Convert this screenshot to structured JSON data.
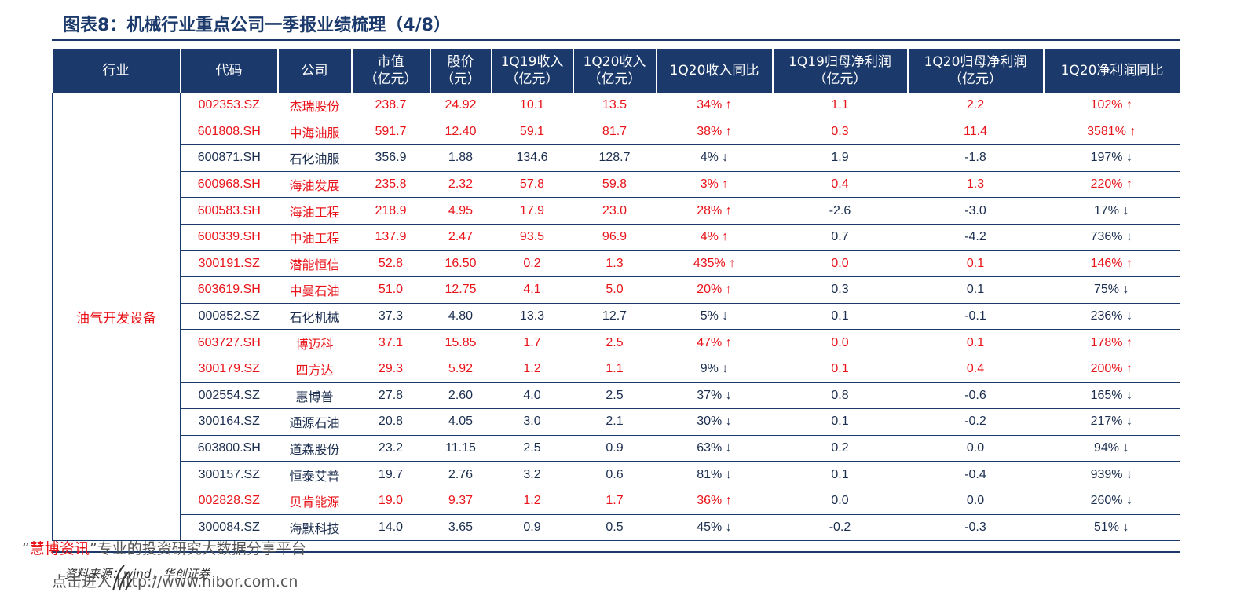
{
  "title": "图表8：机械行业重点公司一季报业绩梳理（4/8）",
  "headers": [
    {
      "l1": "行业",
      "l2": ""
    },
    {
      "l1": "代码",
      "l2": ""
    },
    {
      "l1": "公司",
      "l2": ""
    },
    {
      "l1": "市值",
      "l2": "（亿元）"
    },
    {
      "l1": "股价",
      "l2": "（元）"
    },
    {
      "l1": "1Q19收入",
      "l2": "（亿元）"
    },
    {
      "l1": "1Q20收入",
      "l2": "（亿元）"
    },
    {
      "l1": "1Q20收入同比",
      "l2": ""
    },
    {
      "l1": "1Q19归母净利润",
      "l2": "（亿元）"
    },
    {
      "l1": "1Q20归母净利润",
      "l2": "（亿元）"
    },
    {
      "l1": "1Q20净利润同比",
      "l2": ""
    }
  ],
  "industry": "油气开发设备",
  "arrows": {
    "up": "↑",
    "down": "↓"
  },
  "rows": [
    {
      "code": "002353.SZ",
      "company": "杰瑞股份",
      "mcap": "238.7",
      "price": "24.92",
      "rev19": "10.1",
      "rev20": "13.5",
      "rev_yoy": "34%",
      "rev_dir": "up",
      "np19": "1.1",
      "np20": "2.2",
      "np_yoy": "102%",
      "np_dir": "up",
      "highlight": true
    },
    {
      "code": "601808.SH",
      "company": "中海油服",
      "mcap": "591.7",
      "price": "12.40",
      "rev19": "59.1",
      "rev20": "81.7",
      "rev_yoy": "38%",
      "rev_dir": "up",
      "np19": "0.3",
      "np20": "11.4",
      "np_yoy": "3581%",
      "np_dir": "up",
      "highlight": true
    },
    {
      "code": "600871.SH",
      "company": "石化油服",
      "mcap": "356.9",
      "price": "1.88",
      "rev19": "134.6",
      "rev20": "128.7",
      "rev_yoy": "4%",
      "rev_dir": "down",
      "np19": "1.9",
      "np20": "-1.8",
      "np_yoy": "197%",
      "np_dir": "down",
      "highlight": false
    },
    {
      "code": "600968.SH",
      "company": "海油发展",
      "mcap": "235.8",
      "price": "2.32",
      "rev19": "57.8",
      "rev20": "59.8",
      "rev_yoy": "3%",
      "rev_dir": "up",
      "np19": "0.4",
      "np20": "1.3",
      "np_yoy": "220%",
      "np_dir": "up",
      "highlight": true
    },
    {
      "code": "600583.SH",
      "company": "海油工程",
      "mcap": "218.9",
      "price": "4.95",
      "rev19": "17.9",
      "rev20": "23.0",
      "rev_yoy": "28%",
      "rev_dir": "up",
      "np19": "-2.6",
      "np20": "-3.0",
      "np_yoy": "17%",
      "np_dir": "down",
      "highlight": true,
      "partial": true
    },
    {
      "code": "600339.SH",
      "company": "中油工程",
      "mcap": "137.9",
      "price": "2.47",
      "rev19": "93.5",
      "rev20": "96.9",
      "rev_yoy": "4%",
      "rev_dir": "up",
      "np19": "0.7",
      "np20": "-4.2",
      "np_yoy": "736%",
      "np_dir": "down",
      "highlight": true,
      "partial": true
    },
    {
      "code": "300191.SZ",
      "company": "潜能恒信",
      "mcap": "52.8",
      "price": "16.50",
      "rev19": "0.2",
      "rev20": "1.3",
      "rev_yoy": "435%",
      "rev_dir": "up",
      "np19": "0.0",
      "np20": "0.1",
      "np_yoy": "146%",
      "np_dir": "up",
      "highlight": true
    },
    {
      "code": "603619.SH",
      "company": "中曼石油",
      "mcap": "51.0",
      "price": "12.75",
      "rev19": "4.1",
      "rev20": "5.0",
      "rev_yoy": "20%",
      "rev_dir": "up",
      "np19": "0.3",
      "np20": "0.1",
      "np_yoy": "75%",
      "np_dir": "down",
      "highlight": true,
      "partial": true
    },
    {
      "code": "000852.SZ",
      "company": "石化机械",
      "mcap": "37.3",
      "price": "4.80",
      "rev19": "13.3",
      "rev20": "12.7",
      "rev_yoy": "5%",
      "rev_dir": "down",
      "np19": "0.1",
      "np20": "-0.1",
      "np_yoy": "236%",
      "np_dir": "down",
      "highlight": false
    },
    {
      "code": "603727.SH",
      "company": "博迈科",
      "mcap": "37.1",
      "price": "15.85",
      "rev19": "1.7",
      "rev20": "2.5",
      "rev_yoy": "47%",
      "rev_dir": "up",
      "np19": "0.0",
      "np20": "0.1",
      "np_yoy": "178%",
      "np_dir": "up",
      "highlight": true
    },
    {
      "code": "300179.SZ",
      "company": "四方达",
      "mcap": "29.3",
      "price": "5.92",
      "rev19": "1.2",
      "rev20": "1.1",
      "rev_yoy": "9%",
      "rev_dir": "down",
      "np19": "0.1",
      "np20": "0.4",
      "np_yoy": "200%",
      "np_dir": "up",
      "highlight": true,
      "partial2": true
    },
    {
      "code": "002554.SZ",
      "company": "惠博普",
      "mcap": "27.8",
      "price": "2.60",
      "rev19": "4.0",
      "rev20": "2.5",
      "rev_yoy": "37%",
      "rev_dir": "down",
      "np19": "0.8",
      "np20": "-0.6",
      "np_yoy": "165%",
      "np_dir": "down",
      "highlight": false
    },
    {
      "code": "300164.SZ",
      "company": "通源石油",
      "mcap": "20.8",
      "price": "4.05",
      "rev19": "3.0",
      "rev20": "2.1",
      "rev_yoy": "30%",
      "rev_dir": "down",
      "np19": "0.1",
      "np20": "-0.2",
      "np_yoy": "217%",
      "np_dir": "down",
      "highlight": false
    },
    {
      "code": "603800.SH",
      "company": "道森股份",
      "mcap": "23.2",
      "price": "11.15",
      "rev19": "2.5",
      "rev20": "0.9",
      "rev_yoy": "63%",
      "rev_dir": "down",
      "np19": "0.2",
      "np20": "0.0",
      "np_yoy": "94%",
      "np_dir": "down",
      "highlight": false
    },
    {
      "code": "300157.SZ",
      "company": "恒泰艾普",
      "mcap": "19.7",
      "price": "2.76",
      "rev19": "3.2",
      "rev20": "0.6",
      "rev_yoy": "81%",
      "rev_dir": "down",
      "np19": "0.1",
      "np20": "-0.4",
      "np_yoy": "939%",
      "np_dir": "down",
      "highlight": false
    },
    {
      "code": "002828.SZ",
      "company": "贝肯能源",
      "mcap": "19.0",
      "price": "9.37",
      "rev19": "1.2",
      "rev20": "1.7",
      "rev_yoy": "36%",
      "rev_dir": "up",
      "np19": "0.0",
      "np20": "0.0",
      "np_yoy": "260%",
      "np_dir": "down",
      "highlight": true,
      "partial": true
    },
    {
      "code": "300084.SZ",
      "company": "海默科技",
      "mcap": "14.0",
      "price": "3.65",
      "rev19": "0.9",
      "rev20": "0.5",
      "rev_yoy": "45%",
      "rev_dir": "down",
      "np19": "-0.2",
      "np20": "-0.3",
      "np_yoy": "51%",
      "np_dir": "down",
      "highlight": false
    }
  ],
  "source": "资料来源：wind，华创证券",
  "watermark": {
    "line1_open": "“",
    "line1_brand": "慧博资讯",
    "line1_rest": "”专业的投资研究大数据分享平台",
    "line2": "点击进入 http://www.hibor.com.cn"
  },
  "colors": {
    "navy": "#1b3a6b",
    "red": "#e8141a",
    "text": "#1b2e4f"
  }
}
